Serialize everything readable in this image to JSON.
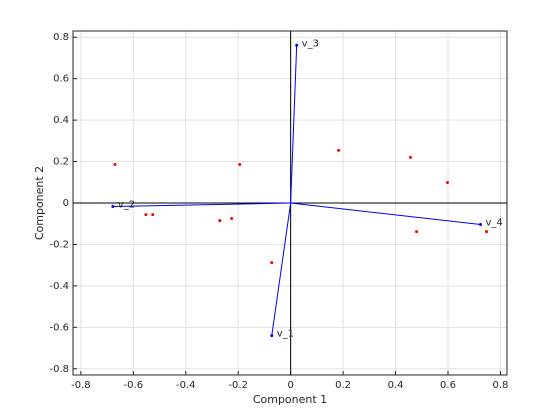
{
  "chart_data": {
    "type": "biplot",
    "xlabel": "Component 1",
    "ylabel": "Component 2",
    "xlim": [
      -0.83,
      0.825
    ],
    "ylim": [
      -0.83,
      0.83
    ],
    "xticks": [
      -0.8,
      -0.6,
      -0.4,
      -0.2,
      0,
      0.2,
      0.4,
      0.6,
      0.8
    ],
    "yticks": [
      -0.8,
      -0.6,
      -0.4,
      -0.2,
      0,
      0.2,
      0.4,
      0.6,
      0.8
    ],
    "grid": true,
    "vector_color": "#0000ff",
    "vectors": [
      {
        "name": "v_1",
        "x": -0.072,
        "y": -0.64
      },
      {
        "name": "v_2",
        "x": -0.678,
        "y": -0.017
      },
      {
        "name": "v_3",
        "x": 0.023,
        "y": 0.761
      },
      {
        "name": "v_4",
        "x": 0.724,
        "y": -0.104
      }
    ],
    "points": {
      "color": "#ff0000",
      "x": [
        -0.67,
        -0.194,
        0.183,
        0.457,
        0.598,
        -0.552,
        -0.526,
        -0.27,
        -0.225,
        -0.072,
        0.48,
        0.747
      ],
      "y": [
        0.186,
        0.186,
        0.254,
        0.22,
        0.099,
        -0.056,
        -0.056,
        -0.085,
        -0.075,
        -0.288,
        -0.138,
        -0.138
      ]
    }
  }
}
